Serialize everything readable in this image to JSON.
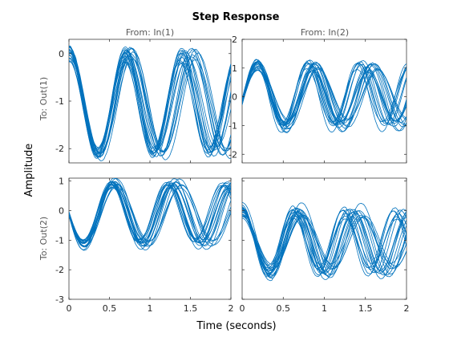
{
  "chart_data": {
    "type": "line",
    "title": "Step Response",
    "xlabel": "Time (seconds)",
    "ylabel": "Amplitude",
    "line_color": "#0072BD",
    "grid": false,
    "x_ticks": [
      "0",
      "0.5",
      "1",
      "1.5",
      "2",
      "0",
      "0.5",
      "1",
      "1.5",
      "2"
    ],
    "xlim": [
      0,
      2
    ],
    "column_titles": [
      "From: In(1)",
      "From: In(2)"
    ],
    "row_labels": [
      "To: Out(1)",
      "To: Out(2)"
    ],
    "subplots": [
      {
        "id": "out1-in1",
        "ylim": [
          -2.3,
          0.3
        ],
        "y_ticks": [
          "-2",
          "-1",
          "0"
        ],
        "y_tick_values": [
          -2,
          -1,
          0
        ],
        "shape": {
          "offset": -1.05,
          "amplitude": 1.05,
          "period": 0.74,
          "phase": 1.5708,
          "decay": 0.1
        },
        "variation": {
          "amp_spread": 0.12,
          "period_spread": 0.08,
          "offset_spread": 0.08
        },
        "num_traces": 20
      },
      {
        "id": "out1-in2",
        "ylim": [
          -2.3,
          2.0
        ],
        "y_ticks": [
          "-2",
          "-1",
          "0",
          "1",
          "2"
        ],
        "y_tick_values": [
          -2,
          -1,
          0,
          1,
          2
        ],
        "shape": {
          "offset": 0.05,
          "amplitude": 1.05,
          "period": 0.68,
          "phase": -0.2,
          "decay": 0.12
        },
        "variation": {
          "amp_spread": 0.18,
          "period_spread": 0.1,
          "offset_spread": 0.1
        },
        "num_traces": 20
      },
      {
        "id": "out2-in1",
        "ylim": [
          -3.0,
          1.1
        ],
        "y_ticks": [
          "-3",
          "-2",
          "-1",
          "0",
          "1"
        ],
        "y_tick_values": [
          -3,
          -2,
          -1,
          0,
          1
        ],
        "shape": {
          "offset": -0.1,
          "amplitude": 1.05,
          "period": 0.74,
          "phase": 3.1416,
          "decay": 0.08
        },
        "variation": {
          "amp_spread": 0.12,
          "period_spread": 0.08,
          "offset_spread": 0.08
        },
        "num_traces": 20
      },
      {
        "id": "out2-in2",
        "ylim": [
          -3.0,
          1.1
        ],
        "y_ticks": [],
        "y_tick_values": [
          -3,
          -2,
          -1,
          0,
          1
        ],
        "shape": {
          "offset": -1.05,
          "amplitude": 1.05,
          "period": 0.68,
          "phase": 1.5708,
          "decay": 0.1
        },
        "variation": {
          "amp_spread": 0.2,
          "period_spread": 0.1,
          "offset_spread": 0.12
        },
        "num_traces": 20
      }
    ]
  }
}
